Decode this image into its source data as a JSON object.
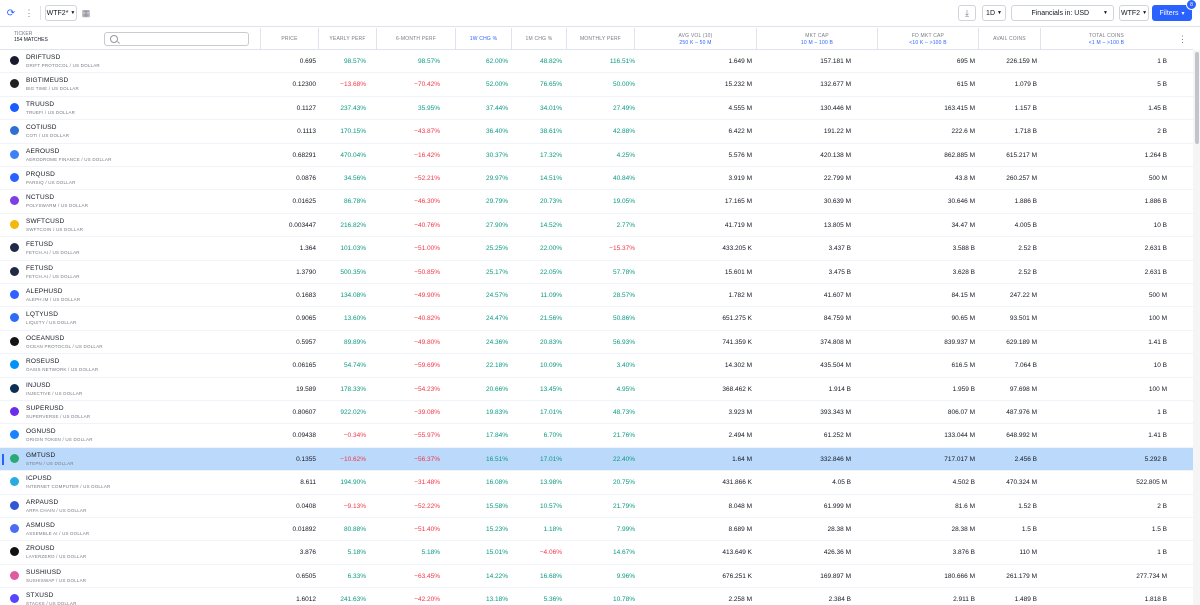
{
  "toolbar": {
    "watchlist_name": "WTF2*",
    "interval": "1D",
    "financials_label": "Financials in: USD",
    "screen_name": "WTF2",
    "filters_label": "Filters",
    "filters_count": "8"
  },
  "table": {
    "ticker_header": "TICKER",
    "matches": "154 MATCHES",
    "search_placeholder": "",
    "columns": [
      {
        "label": "PRICE",
        "sub": ""
      },
      {
        "label": "YEARLY PERF",
        "sub": ""
      },
      {
        "label": "6-MONTH PERF",
        "sub": ""
      },
      {
        "label": "1W CHG %",
        "sub": ""
      },
      {
        "label": "1M CHG %",
        "sub": ""
      },
      {
        "label": "MONTHLY PERF",
        "sub": ""
      },
      {
        "label": "AVG VOL (10)",
        "sub": "250 K – 50 M"
      },
      {
        "label": "MKT CAP",
        "sub": "10 M – 100 B"
      },
      {
        "label": "FD MKT CAP",
        "sub": "<10 K – >100 B"
      },
      {
        "label": "AVAIL COINS",
        "sub": ""
      },
      {
        "label": "TOTAL COINS",
        "sub": "<1 M – >100 B"
      }
    ],
    "rows": [
      {
        "sym": "DRIFTUSD",
        "name": "DRIFT PROTOCOL / US DOLLAR",
        "color": "#1a1a2e",
        "v": [
          "0.695",
          "98.57%",
          "98.57%",
          "62.00%",
          "48.82%",
          "116.51%",
          "1.649 M",
          "157.181 M",
          "695 M",
          "226.159 M",
          "1 B"
        ],
        "s": [
          "n",
          "p",
          "p",
          "p",
          "p",
          "p",
          "n",
          "n",
          "n",
          "n",
          "n"
        ]
      },
      {
        "sym": "BIGTIMEUSD",
        "name": "BIG TIME / US DOLLAR",
        "color": "#222222",
        "v": [
          "0.12300",
          "−13.68%",
          "−70.42%",
          "52.00%",
          "76.65%",
          "50.00%",
          "15.232 M",
          "132.677 M",
          "615 M",
          "1.079 B",
          "5 B"
        ],
        "s": [
          "n",
          "m",
          "m",
          "p",
          "p",
          "p",
          "n",
          "n",
          "n",
          "n",
          "n"
        ]
      },
      {
        "sym": "TRUUSD",
        "name": "TRUEFI / US DOLLAR",
        "color": "#1a5cff",
        "v": [
          "0.1127",
          "237.43%",
          "35.95%",
          "37.44%",
          "34.01%",
          "27.49%",
          "4.555 M",
          "130.446 M",
          "163.415 M",
          "1.157 B",
          "1.45 B"
        ],
        "s": [
          "n",
          "p",
          "p",
          "p",
          "p",
          "p",
          "n",
          "n",
          "n",
          "n",
          "n"
        ]
      },
      {
        "sym": "COTIUSD",
        "name": "COTI / US DOLLAR",
        "color": "#2f6fd1",
        "v": [
          "0.1113",
          "170.15%",
          "−43.87%",
          "36.40%",
          "38.61%",
          "42.88%",
          "6.422 M",
          "191.22 M",
          "222.6 M",
          "1.718 B",
          "2 B"
        ],
        "s": [
          "n",
          "p",
          "m",
          "p",
          "p",
          "p",
          "n",
          "n",
          "n",
          "n",
          "n"
        ]
      },
      {
        "sym": "AEROUSD",
        "name": "AERODROME FINANCE / US DOLLAR",
        "color": "#3b82f6",
        "v": [
          "0.68291",
          "470.04%",
          "−16.42%",
          "30.37%",
          "17.32%",
          "4.25%",
          "5.576 M",
          "420.138 M",
          "862.885 M",
          "615.217 M",
          "1.264 B"
        ],
        "s": [
          "n",
          "p",
          "m",
          "p",
          "p",
          "p",
          "n",
          "n",
          "n",
          "n",
          "n"
        ]
      },
      {
        "sym": "PRQUSD",
        "name": "PARSIQ / US DOLLAR",
        "color": "#2962ff",
        "v": [
          "0.0876",
          "34.56%",
          "−52.21%",
          "29.97%",
          "14.51%",
          "40.84%",
          "3.919 M",
          "22.799 M",
          "43.8 M",
          "260.257 M",
          "500 M"
        ],
        "s": [
          "n",
          "p",
          "m",
          "p",
          "p",
          "p",
          "n",
          "n",
          "n",
          "n",
          "n"
        ]
      },
      {
        "sym": "NCTUSD",
        "name": "POLYSWARM / US DOLLAR",
        "color": "#7b3fe4",
        "v": [
          "0.01625",
          "86.78%",
          "−46.30%",
          "29.79%",
          "20.73%",
          "19.05%",
          "17.165 M",
          "30.639 M",
          "30.646 M",
          "1.886 B",
          "1.886 B"
        ],
        "s": [
          "n",
          "p",
          "m",
          "p",
          "p",
          "p",
          "n",
          "n",
          "n",
          "n",
          "n"
        ]
      },
      {
        "sym": "SWFTCUSD",
        "name": "SWFTCOIN / US DOLLAR",
        "color": "#f0b90b",
        "v": [
          "0.003447",
          "216.82%",
          "−40.76%",
          "27.90%",
          "14.52%",
          "2.77%",
          "41.719 M",
          "13.805 M",
          "34.47 M",
          "4.005 B",
          "10 B"
        ],
        "s": [
          "n",
          "p",
          "m",
          "p",
          "p",
          "p",
          "n",
          "n",
          "n",
          "n",
          "n"
        ]
      },
      {
        "sym": "FETUSD",
        "name": "FETCH.AI / US DOLLAR",
        "color": "#1f2a44",
        "v": [
          "1.364",
          "101.03%",
          "−51.00%",
          "25.25%",
          "22.00%",
          "−15.37%",
          "433.205 K",
          "3.437 B",
          "3.588 B",
          "2.52 B",
          "2.631 B"
        ],
        "s": [
          "n",
          "p",
          "m",
          "p",
          "p",
          "m",
          "n",
          "n",
          "n",
          "n",
          "n"
        ]
      },
      {
        "sym": "FETUSD",
        "name": "FETCH.AI / US DOLLAR",
        "color": "#1f2a44",
        "v": [
          "1.3790",
          "500.35%",
          "−50.85%",
          "25.17%",
          "22.05%",
          "57.78%",
          "15.601 M",
          "3.475 B",
          "3.628 B",
          "2.52 B",
          "2.631 B"
        ],
        "s": [
          "n",
          "p",
          "m",
          "p",
          "p",
          "p",
          "n",
          "n",
          "n",
          "n",
          "n"
        ]
      },
      {
        "sym": "ALEPHUSD",
        "name": "ALEPH.IM / US DOLLAR",
        "color": "#3060ff",
        "v": [
          "0.1683",
          "134.08%",
          "−49.90%",
          "24.57%",
          "11.09%",
          "28.57%",
          "1.782 M",
          "41.607 M",
          "84.15 M",
          "247.22 M",
          "500 M"
        ],
        "s": [
          "n",
          "p",
          "m",
          "p",
          "p",
          "p",
          "n",
          "n",
          "n",
          "n",
          "n"
        ]
      },
      {
        "sym": "LQTYUSD",
        "name": "LIQUITY / US DOLLAR",
        "color": "#2e6bf6",
        "v": [
          "0.9065",
          "13.60%",
          "−40.82%",
          "24.47%",
          "21.56%",
          "50.86%",
          "651.275 K",
          "84.759 M",
          "90.65 M",
          "93.501 M",
          "100 M"
        ],
        "s": [
          "n",
          "p",
          "m",
          "p",
          "p",
          "p",
          "n",
          "n",
          "n",
          "n",
          "n"
        ]
      },
      {
        "sym": "OCEANUSD",
        "name": "OCEAN PROTOCOL / US DOLLAR",
        "color": "#141414",
        "v": [
          "0.5957",
          "89.89%",
          "−49.80%",
          "24.36%",
          "20.83%",
          "56.93%",
          "741.359 K",
          "374.808 M",
          "839.937 M",
          "629.189 M",
          "1.41 B"
        ],
        "s": [
          "n",
          "p",
          "m",
          "p",
          "p",
          "p",
          "n",
          "n",
          "n",
          "n",
          "n"
        ]
      },
      {
        "sym": "ROSEUSD",
        "name": "OASIS NETWORK / US DOLLAR",
        "color": "#0092f6",
        "v": [
          "0.06165",
          "54.74%",
          "−59.69%",
          "22.18%",
          "10.09%",
          "3.40%",
          "14.302 M",
          "435.504 M",
          "616.5 M",
          "7.064 B",
          "10 B"
        ],
        "s": [
          "n",
          "p",
          "m",
          "p",
          "p",
          "p",
          "n",
          "n",
          "n",
          "n",
          "n"
        ]
      },
      {
        "sym": "INJUSD",
        "name": "INJECTIVE / US DOLLAR",
        "color": "#0b2f55",
        "v": [
          "19.589",
          "178.33%",
          "−54.23%",
          "20.66%",
          "13.45%",
          "4.95%",
          "368.462 K",
          "1.914 B",
          "1.959 B",
          "97.698 M",
          "100 M"
        ],
        "s": [
          "n",
          "p",
          "m",
          "p",
          "p",
          "p",
          "n",
          "n",
          "n",
          "n",
          "n"
        ]
      },
      {
        "sym": "SUPERUSD",
        "name": "SUPERVERSE / US DOLLAR",
        "color": "#6a2ee8",
        "v": [
          "0.80607",
          "922.02%",
          "−39.08%",
          "19.83%",
          "17.01%",
          "48.73%",
          "3.923 M",
          "393.343 M",
          "806.07 M",
          "487.976 M",
          "1 B"
        ],
        "s": [
          "n",
          "p",
          "m",
          "p",
          "p",
          "p",
          "n",
          "n",
          "n",
          "n",
          "n"
        ]
      },
      {
        "sym": "OGNUSD",
        "name": "ORIGIN TOKEN / US DOLLAR",
        "color": "#1a82ff",
        "v": [
          "0.09438",
          "−0.34%",
          "−55.97%",
          "17.84%",
          "6.70%",
          "21.76%",
          "2.494 M",
          "61.252 M",
          "133.044 M",
          "648.992 M",
          "1.41 B"
        ],
        "s": [
          "n",
          "m",
          "m",
          "p",
          "p",
          "p",
          "n",
          "n",
          "n",
          "n",
          "n"
        ]
      },
      {
        "sym": "GMTUSD",
        "name": "STEPN / US DOLLAR",
        "color": "#2aa876",
        "v": [
          "0.1355",
          "−10.62%",
          "−56.37%",
          "16.51%",
          "17.01%",
          "22.40%",
          "1.64 M",
          "332.846 M",
          "717.017 M",
          "2.456 B",
          "5.292 B"
        ],
        "s": [
          "n",
          "m",
          "m",
          "p",
          "p",
          "p",
          "n",
          "n",
          "n",
          "n",
          "n"
        ],
        "hl": true
      },
      {
        "sym": "ICPUSD",
        "name": "INTERNET COMPUTER / US DOLLAR",
        "color": "#29abe2",
        "v": [
          "8.611",
          "194.90%",
          "−31.48%",
          "16.08%",
          "13.98%",
          "20.75%",
          "431.866 K",
          "4.05 B",
          "4.502 B",
          "470.324 M",
          "522.805 M"
        ],
        "s": [
          "n",
          "p",
          "m",
          "p",
          "p",
          "p",
          "n",
          "n",
          "n",
          "n",
          "n"
        ]
      },
      {
        "sym": "ARPAUSD",
        "name": "ARPA CHAIN / US DOLLAR",
        "color": "#3157d5",
        "v": [
          "0.0408",
          "−9.13%",
          "−52.22%",
          "15.58%",
          "10.57%",
          "21.79%",
          "8.048 M",
          "61.999 M",
          "81.6 M",
          "1.52 B",
          "2 B"
        ],
        "s": [
          "n",
          "m",
          "m",
          "p",
          "p",
          "p",
          "n",
          "n",
          "n",
          "n",
          "n"
        ]
      },
      {
        "sym": "ASMUSD",
        "name": "ASSEMBLE AI / US DOLLAR",
        "color": "#4a6cf7",
        "v": [
          "0.01892",
          "80.88%",
          "−51.40%",
          "15.23%",
          "1.18%",
          "7.99%",
          "8.689 M",
          "28.38 M",
          "28.38 M",
          "1.5 B",
          "1.5 B"
        ],
        "s": [
          "n",
          "p",
          "m",
          "p",
          "p",
          "p",
          "n",
          "n",
          "n",
          "n",
          "n"
        ]
      },
      {
        "sym": "ZROUSD",
        "name": "LAYERZERO / US DOLLAR",
        "color": "#111111",
        "v": [
          "3.876",
          "5.18%",
          "5.18%",
          "15.01%",
          "−4.06%",
          "14.67%",
          "413.649 K",
          "426.36 M",
          "3.876 B",
          "110 M",
          "1 B"
        ],
        "s": [
          "n",
          "p",
          "p",
          "p",
          "m",
          "p",
          "n",
          "n",
          "n",
          "n",
          "n"
        ]
      },
      {
        "sym": "SUSHIUSD",
        "name": "SUSHISWAP / US DOLLAR",
        "color": "#e05aa0",
        "v": [
          "0.6505",
          "6.33%",
          "−63.45%",
          "14.22%",
          "16.68%",
          "9.96%",
          "676.251 K",
          "169.897 M",
          "180.666 M",
          "261.179 M",
          "277.734 M"
        ],
        "s": [
          "n",
          "p",
          "m",
          "p",
          "p",
          "p",
          "n",
          "n",
          "n",
          "n",
          "n"
        ]
      },
      {
        "sym": "STXUSD",
        "name": "STACKS / US DOLLAR",
        "color": "#5546ff",
        "v": [
          "1.6012",
          "241.63%",
          "−42.20%",
          "13.18%",
          "5.36%",
          "10.78%",
          "2.258 M",
          "2.384 B",
          "2.911 B",
          "1.489 B",
          "1.818 B"
        ],
        "s": [
          "n",
          "p",
          "m",
          "p",
          "p",
          "p",
          "n",
          "n",
          "n",
          "n",
          "n"
        ]
      }
    ]
  }
}
